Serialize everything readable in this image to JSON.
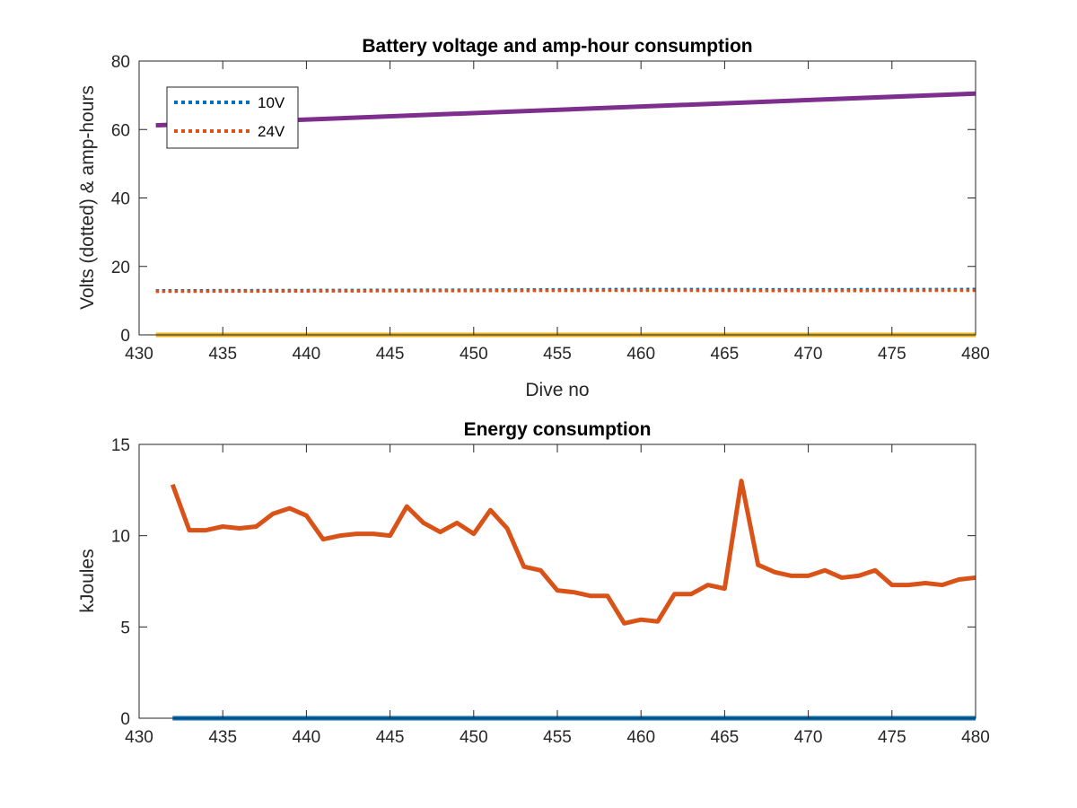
{
  "chart_data": [
    {
      "type": "line",
      "title": "Battery voltage and amp-hour consumption",
      "xlabel": "Dive no",
      "ylabel": "Volts (dotted) & amp-hours",
      "xlim": [
        430,
        480
      ],
      "ylim": [
        0,
        80
      ],
      "xticks": [
        "430",
        "435",
        "440",
        "445",
        "450",
        "455",
        "460",
        "465",
        "470",
        "475",
        "480"
      ],
      "yticks": [
        "0",
        "20",
        "40",
        "60",
        "80"
      ],
      "grid": false,
      "legend_position": "top-left",
      "x": [
        431,
        480
      ],
      "series": [
        {
          "name": "10V",
          "style": "dotted",
          "color": "#0072BD",
          "x": [
            431,
            440,
            450,
            460,
            470,
            480
          ],
          "values": [
            12.9,
            13.0,
            13.1,
            13.3,
            13.2,
            13.3
          ]
        },
        {
          "name": "24V",
          "style": "dotted",
          "color": "#D95319",
          "x": [
            431,
            440,
            450,
            460,
            470,
            480
          ],
          "values": [
            12.7,
            12.8,
            12.9,
            13.0,
            12.9,
            13.0
          ]
        },
        {
          "style": "solid",
          "color": "#7E2F8E",
          "x": [
            431,
            480
          ],
          "values": [
            61.2,
            70.5
          ]
        },
        {
          "style": "solid",
          "color": "#EDB120",
          "x": [
            431,
            480
          ],
          "values": [
            0,
            0
          ]
        }
      ]
    },
    {
      "type": "line",
      "title": "Energy consumption",
      "xlabel": "",
      "ylabel": "kJoules",
      "xlim": [
        430,
        480
      ],
      "ylim": [
        0,
        15
      ],
      "xticks": [
        "430",
        "435",
        "440",
        "445",
        "450",
        "455",
        "460",
        "465",
        "470",
        "475",
        "480"
      ],
      "yticks": [
        "0",
        "5",
        "10",
        "15"
      ],
      "grid": false,
      "series": [
        {
          "style": "solid",
          "color": "#D95319",
          "x": [
            432,
            433,
            434,
            435,
            436,
            437,
            438,
            439,
            440,
            441,
            442,
            443,
            444,
            445,
            446,
            447,
            448,
            449,
            450,
            451,
            452,
            453,
            454,
            455,
            456,
            457,
            458,
            459,
            460,
            461,
            462,
            463,
            464,
            465,
            466,
            467,
            468,
            469,
            470,
            471,
            472,
            473,
            474,
            475,
            476,
            477,
            478,
            479,
            480
          ],
          "values": [
            12.8,
            10.3,
            10.3,
            10.5,
            10.4,
            10.5,
            11.2,
            11.5,
            11.1,
            9.8,
            10.0,
            10.1,
            10.1,
            10.0,
            11.6,
            10.7,
            10.2,
            10.7,
            10.1,
            11.4,
            10.4,
            8.3,
            8.1,
            7.0,
            6.9,
            6.7,
            6.7,
            5.2,
            5.4,
            5.3,
            6.8,
            6.8,
            7.3,
            7.1,
            13.0,
            8.4,
            8.0,
            7.8,
            7.8,
            8.1,
            7.7,
            7.8,
            8.1,
            7.3,
            7.3,
            7.4,
            7.3,
            7.6,
            7.7
          ]
        },
        {
          "style": "solid",
          "color": "#0072BD",
          "x": [
            432,
            480
          ],
          "values": [
            0,
            0
          ]
        }
      ]
    }
  ]
}
